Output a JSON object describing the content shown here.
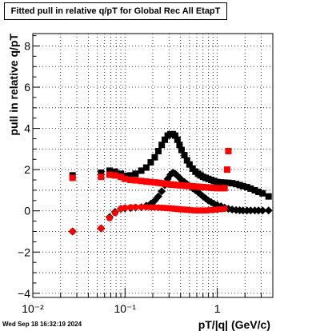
{
  "chart_data": {
    "type": "scatter",
    "title": "Fitted pull in relative q/pT for Global Rec All EtapT",
    "xlabel": "pT/|q| (GeV/c)",
    "ylabel": "pull in relative q/pT",
    "x_scale": "log",
    "xlim": [
      0.01,
      4.0
    ],
    "ylim": [
      -4.2,
      8.6
    ],
    "grid": true,
    "x_tick_labels": [
      "10⁻²",
      "10⁻¹",
      "1"
    ],
    "x_tick_values": [
      0.01,
      0.1,
      1
    ],
    "y_tick_values": [
      -4,
      -2,
      0,
      2,
      4,
      6,
      8
    ],
    "series": [
      {
        "marker": "square",
        "color": "#000000",
        "x": [
          0.027,
          0.055,
          0.068,
          0.078,
          0.09,
          0.1,
          0.115,
          0.13,
          0.15,
          0.17,
          0.19,
          0.21,
          0.23,
          0.25,
          0.27,
          0.29,
          0.31,
          0.33,
          0.35,
          0.37,
          0.39,
          0.41,
          0.44,
          0.47,
          0.5,
          0.54,
          0.58,
          0.62,
          0.66,
          0.7,
          0.75,
          0.8,
          0.86,
          0.92,
          1.0,
          1.1,
          1.2,
          1.32,
          1.45,
          1.6,
          1.75,
          1.9,
          2.1,
          2.3,
          2.55,
          2.8,
          3.1,
          3.6
        ],
        "values": [
          1.72,
          1.85,
          1.95,
          1.9,
          1.8,
          1.7,
          1.72,
          1.8,
          1.95,
          2.1,
          2.35,
          2.6,
          2.9,
          3.2,
          3.45,
          3.65,
          3.72,
          3.72,
          3.65,
          3.45,
          3.2,
          2.95,
          2.7,
          2.45,
          2.25,
          2.05,
          1.9,
          1.8,
          1.72,
          1.65,
          1.6,
          1.55,
          1.5,
          1.45,
          1.4,
          1.38,
          1.37,
          1.36,
          1.34,
          1.3,
          1.25,
          1.2,
          1.15,
          1.08,
          1.0,
          0.92,
          0.85,
          0.7
        ]
      },
      {
        "marker": "diamond",
        "color": "#000000",
        "x": [
          0.027,
          0.055,
          0.068,
          0.078,
          0.09,
          0.1,
          0.115,
          0.13,
          0.15,
          0.17,
          0.19,
          0.21,
          0.23,
          0.25,
          0.27,
          0.29,
          0.31,
          0.33,
          0.35,
          0.37,
          0.39,
          0.41,
          0.44,
          0.47,
          0.5,
          0.54,
          0.58,
          0.62,
          0.66,
          0.7,
          0.75,
          0.8,
          0.86,
          0.92,
          1.0,
          1.1,
          1.2,
          1.32,
          1.45,
          1.6,
          1.75,
          1.9,
          2.1,
          2.3,
          2.55,
          2.8,
          3.1,
          3.6
        ],
        "values": [
          -1.0,
          -0.85,
          -0.3,
          -0.05,
          0.1,
          0.12,
          0.14,
          0.16,
          0.18,
          0.25,
          0.35,
          0.5,
          0.7,
          0.95,
          1.25,
          1.55,
          1.75,
          1.85,
          1.8,
          1.7,
          1.6,
          1.5,
          1.4,
          1.3,
          1.2,
          1.1,
          1.0,
          0.9,
          0.8,
          0.7,
          0.6,
          0.5,
          0.42,
          0.35,
          0.28,
          0.22,
          0.16,
          0.1,
          0.06,
          0.04,
          0.03,
          0.02,
          0.02,
          0.02,
          0.02,
          0.02,
          0.02,
          0.02
        ]
      },
      {
        "marker": "square",
        "color": "#ff0000",
        "x": [
          0.027,
          0.055,
          0.068,
          0.078,
          0.09,
          0.1,
          0.115,
          0.13,
          0.15,
          0.17,
          0.19,
          0.21,
          0.23,
          0.25,
          0.27,
          0.29,
          0.31,
          0.33,
          0.35,
          0.37,
          0.39,
          0.41,
          0.44,
          0.47,
          0.5,
          0.54,
          0.58,
          0.62,
          0.66,
          0.7,
          0.75,
          0.8,
          0.86,
          0.92,
          1.0,
          1.1,
          1.2,
          1.28,
          1.32
        ],
        "values": [
          1.6,
          1.65,
          1.75,
          1.72,
          1.65,
          1.55,
          1.5,
          1.48,
          1.45,
          1.42,
          1.4,
          1.38,
          1.36,
          1.34,
          1.32,
          1.3,
          1.28,
          1.27,
          1.26,
          1.25,
          1.24,
          1.23,
          1.22,
          1.21,
          1.2,
          1.19,
          1.18,
          1.17,
          1.16,
          1.15,
          1.14,
          1.13,
          1.12,
          1.11,
          1.1,
          1.1,
          1.1,
          2.0,
          2.9
        ]
      },
      {
        "marker": "circle",
        "color": "#ff0000",
        "x": [
          0.027,
          0.055,
          0.068,
          0.078,
          0.09,
          0.1,
          0.115,
          0.13,
          0.15,
          0.17,
          0.19,
          0.21,
          0.23,
          0.25,
          0.27,
          0.29,
          0.31,
          0.33,
          0.35,
          0.37,
          0.39,
          0.41,
          0.44,
          0.47,
          0.5,
          0.54,
          0.58,
          0.62,
          0.66,
          0.7,
          0.75,
          0.8,
          0.86,
          0.92,
          1.0,
          1.1,
          1.2
        ],
        "values": [
          -1.0,
          -0.85,
          -0.35,
          -0.1,
          0.1,
          0.15,
          0.17,
          0.18,
          0.18,
          0.18,
          0.17,
          0.17,
          0.16,
          0.15,
          0.14,
          0.13,
          0.12,
          0.11,
          0.1,
          0.09,
          0.08,
          0.07,
          0.06,
          0.05,
          0.04,
          0.03,
          0.02,
          0.02,
          0.02,
          0.02,
          0.02,
          0.03,
          0.04,
          0.05,
          0.06,
          0.08,
          0.1
        ]
      }
    ]
  },
  "footer": {
    "timestamp": "Wed Sep 18 16:32:19 2024"
  }
}
